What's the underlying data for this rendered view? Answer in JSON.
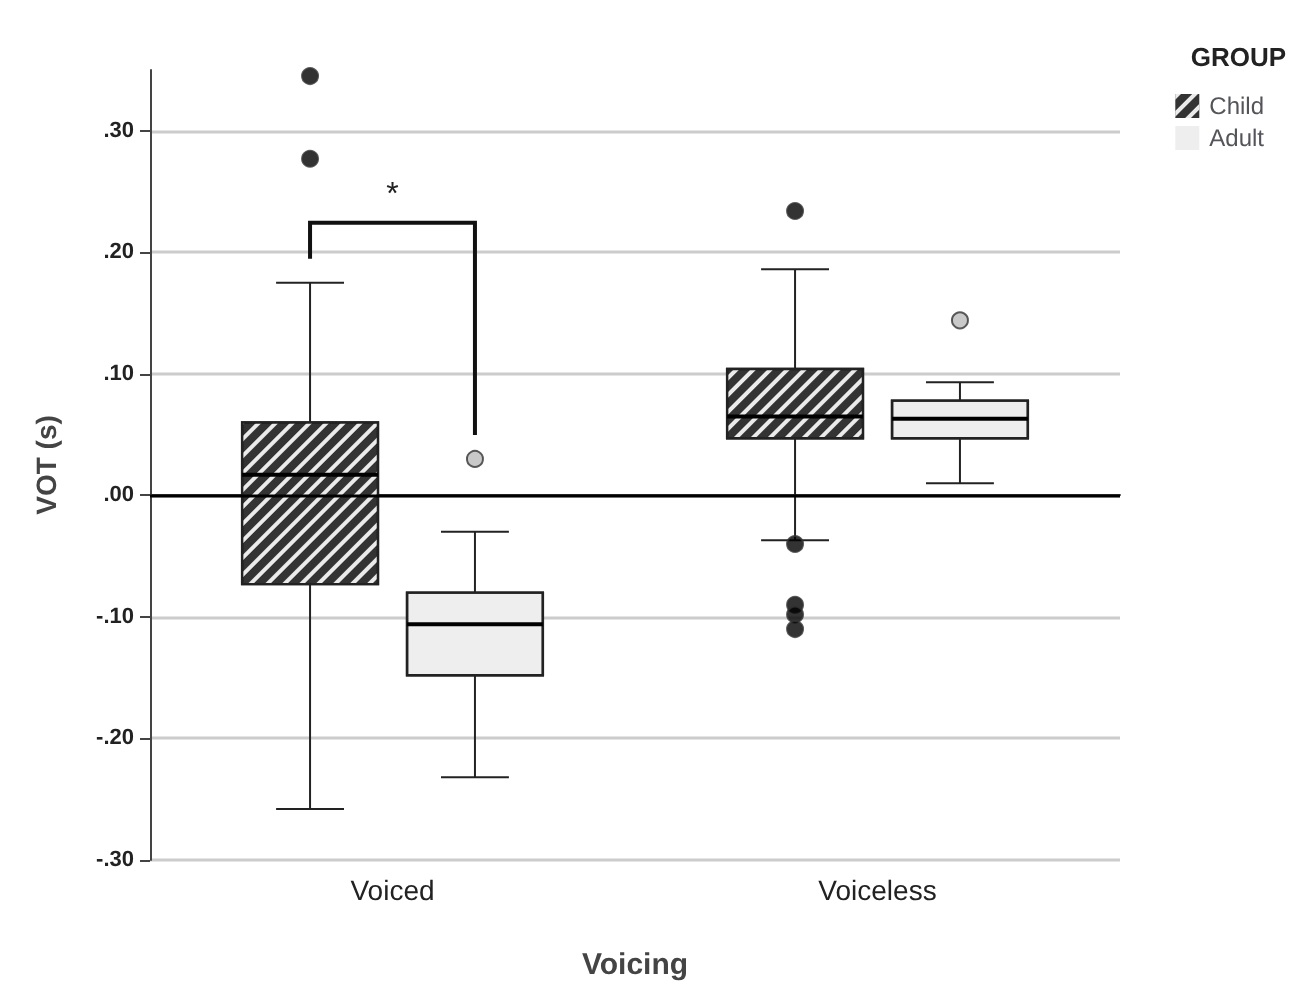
{
  "chart_data": {
    "type": "box",
    "xlabel": "Voicing",
    "ylabel": "VOT (s)",
    "legend_title": "GROUP",
    "legend": "top right",
    "grid": "y",
    "categories": [
      "Voiced",
      "Voiceless"
    ],
    "ylim": [
      -0.3,
      0.35
    ],
    "yticks": [
      {
        "value": -0.3,
        "label": "-.30"
      },
      {
        "value": -0.2,
        "label": "-.20"
      },
      {
        "value": -0.1,
        "label": "-.10"
      },
      {
        "value": 0,
        "label": ".00"
      },
      {
        "value": 0.1,
        "label": ".10"
      },
      {
        "value": 0.2,
        "label": ".20"
      },
      {
        "value": 0.3,
        "label": ".30"
      }
    ],
    "ref_lines": [
      {
        "axis": "y",
        "value": 0,
        "color": "#000000"
      }
    ],
    "annotations": [
      "*"
    ],
    "series": [
      {
        "name": "Child",
        "color": "#333333",
        "boxes": [
          {
            "low": -0.258,
            "q1": -0.073,
            "median": 0.017,
            "q3": 0.06,
            "high": 0.175,
            "outliers": [
              0.345,
              0.277
            ]
          },
          {
            "low": -0.037,
            "q1": 0.047,
            "median": 0.065,
            "q3": 0.104,
            "high": 0.186,
            "outliers": [
              0.234,
              -0.04,
              -0.09,
              -0.098,
              -0.11
            ]
          }
        ]
      },
      {
        "name": "Adult",
        "color": "#eeeeee",
        "boxes": [
          {
            "low": -0.232,
            "q1": -0.148,
            "median": -0.106,
            "q3": -0.08,
            "high": -0.03,
            "outliers": [
              0.03
            ]
          },
          {
            "low": 0.01,
            "q1": 0.047,
            "median": 0.063,
            "q3": 0.078,
            "high": 0.093,
            "outliers": [
              0.144
            ]
          }
        ]
      }
    ]
  }
}
